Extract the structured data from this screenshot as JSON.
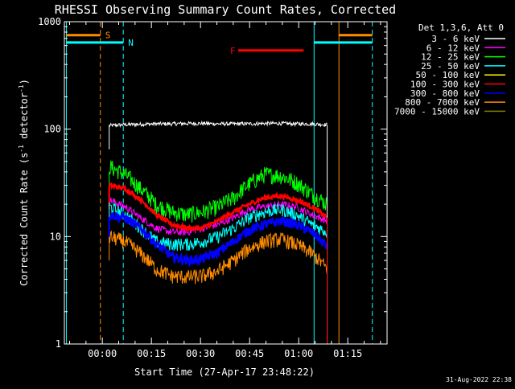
{
  "chart_data": {
    "type": "line",
    "title": "RHESSI Observing Summary Count Rates, Corrected",
    "xlabel": "Start Time (27-Apr-17 23:48:22)",
    "ylabel_base": "Corrected Count Rate (s",
    "ylabel_sup1": "-1",
    "ylabel_mid": " detector",
    "ylabel_sup2": "-1",
    "ylabel_end": ")",
    "y_scale": "log",
    "ylim": [
      1,
      1000
    ],
    "xlim_minutes": [
      -11.6,
      87.0
    ],
    "x_ticks": [
      {
        "minute": 0,
        "label": "00:00"
      },
      {
        "minute": 15,
        "label": "00:15"
      },
      {
        "minute": 30,
        "label": "00:30"
      },
      {
        "minute": 45,
        "label": "00:45"
      },
      {
        "minute": 60,
        "label": "01:00"
      },
      {
        "minute": 75,
        "label": "01:15"
      }
    ],
    "y_ticks": [
      {
        "value": 1,
        "label": "1"
      },
      {
        "value": 10,
        "label": "10"
      },
      {
        "value": 100,
        "label": "100"
      },
      {
        "value": 1000,
        "label": "1000"
      }
    ],
    "data_start_minute": 2.1,
    "data_end_minute": 68.7,
    "legend_header": "Det 1,3,6, Att 0",
    "legend_placement": "right",
    "series": [
      {
        "name": "3 - 6 keV",
        "color": "#ffffff",
        "values": [
          108,
          110,
          111,
          112,
          112,
          113,
          113,
          112,
          112,
          112,
          113,
          113,
          112,
          112,
          110
        ],
        "noise": 0.04
      },
      {
        "name": "6 - 12 keV",
        "color": "#ff00ff",
        "values": [
          22,
          19,
          15,
          12,
          11,
          11,
          12,
          13,
          15,
          18,
          19,
          20,
          19,
          16,
          14
        ],
        "noise": 0.08
      },
      {
        "name": "12 - 25 keV",
        "color": "#00ff00",
        "values": [
          45,
          38,
          28,
          20,
          17,
          16,
          17,
          19,
          23,
          31,
          38,
          37,
          32,
          25,
          20
        ],
        "noise": 0.18
      },
      {
        "name": "25 - 50 keV",
        "color": "#00ffff",
        "values": [
          19,
          16,
          12,
          9,
          8.5,
          8.5,
          9,
          10,
          12,
          15,
          17,
          18,
          16,
          13,
          11
        ],
        "noise": 0.14
      },
      {
        "name": "50 - 100 keV",
        "color": "#ffff00",
        "values": [],
        "noise": 0
      },
      {
        "name": "100 - 300 keV",
        "color": "#ff0000",
        "values": [
          30,
          28,
          22,
          16,
          13,
          12,
          12,
          14,
          17,
          20,
          23,
          24,
          22,
          19,
          15
        ],
        "noise": 0.05
      },
      {
        "name": "300 - 800 keV",
        "color": "#0000ff",
        "values": [
          16,
          15,
          12,
          8.5,
          6.5,
          6.0,
          6.2,
          7.2,
          9.0,
          11.5,
          13,
          14,
          13,
          11,
          8
        ],
        "noise": 0.1
      },
      {
        "name": "800 - 7000 keV",
        "color": "#ff8c00",
        "values": [
          10,
          9,
          7,
          5,
          4.3,
          4.2,
          4.3,
          4.8,
          6,
          7.8,
          9,
          9.5,
          8.5,
          7,
          5
        ],
        "noise": 0.16
      },
      {
        "name": "7000 - 15000 keV",
        "color": "#808000",
        "values": [],
        "noise": 0
      }
    ],
    "vertical_lines": [
      {
        "minute": -11.0,
        "color": "#00ffff",
        "style": "solid"
      },
      {
        "minute": -0.6,
        "color": "#ff8c00",
        "style": "dashed"
      },
      {
        "minute": 6.4,
        "color": "#00ffff",
        "style": "dashed"
      },
      {
        "minute": 64.7,
        "color": "#00ffff",
        "style": "solid"
      },
      {
        "minute": 72.3,
        "color": "#ff8c00",
        "style": "solid"
      },
      {
        "minute": 82.5,
        "color": "#00ffff",
        "style": "dashed"
      }
    ],
    "markers": [
      {
        "label": "S",
        "color": "#ff8c00",
        "segments": [
          [
            -11.0,
            -0.6
          ],
          [
            72.3,
            82.5
          ]
        ],
        "y_value": 750
      },
      {
        "label": "N",
        "color": "#00ffff",
        "segments": [
          [
            -11.0,
            6.4
          ],
          [
            64.7,
            82.5
          ]
        ],
        "y_value": 640
      },
      {
        "label": "F",
        "color": "#ff0000",
        "segments": [
          [
            41.5,
            61.5
          ]
        ],
        "y_value": 540
      }
    ]
  },
  "timestamp": "31-Aug-2022 22:38"
}
